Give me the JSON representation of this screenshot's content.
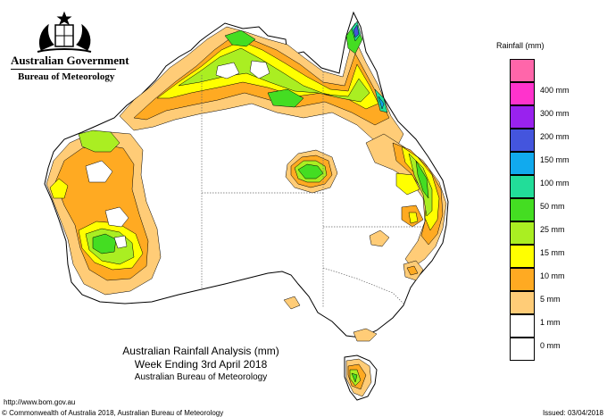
{
  "header": {
    "government": "Australian Government",
    "bureau": "Bureau of Meteorology"
  },
  "map_title": {
    "line1": "Australian Rainfall Analysis (mm)",
    "line2": "Week Ending 3rd April 2018",
    "line3": "Australian Bureau of Meteorology"
  },
  "legend": {
    "title": "Rainfall (mm)",
    "items": [
      {
        "label": "",
        "color": "#ff66aa"
      },
      {
        "label": "400 mm",
        "color": "#ff33cc"
      },
      {
        "label": "300 mm",
        "color": "#9922ee"
      },
      {
        "label": "200 mm",
        "color": "#4455dd"
      },
      {
        "label": "150 mm",
        "color": "#11aaee"
      },
      {
        "label": "100 mm",
        "color": "#22dd99"
      },
      {
        "label": "50 mm",
        "color": "#44dd22"
      },
      {
        "label": "25 mm",
        "color": "#aaee22"
      },
      {
        "label": "15 mm",
        "color": "#ffff00"
      },
      {
        "label": "10 mm",
        "color": "#ffaa22"
      },
      {
        "label": "5 mm",
        "color": "#ffcc77"
      },
      {
        "label": "1 mm",
        "color": "#ffffff"
      },
      {
        "label": "0 mm",
        "color": "#ffffff"
      }
    ]
  },
  "footer": {
    "url": "http://www.bom.gov.au",
    "copyright": "© Commonwealth of Australia 2018, Australian Bureau of Meteorology",
    "issued": "Issued: 03/04/2018"
  },
  "colors": {
    "r1": "#ffcc77",
    "r5": "#ffaa22",
    "r10": "#ffff00",
    "r15": "#aaee22",
    "r25": "#44dd22",
    "r50": "#22dd99",
    "r100": "#11aaee",
    "r150": "#4455dd"
  }
}
